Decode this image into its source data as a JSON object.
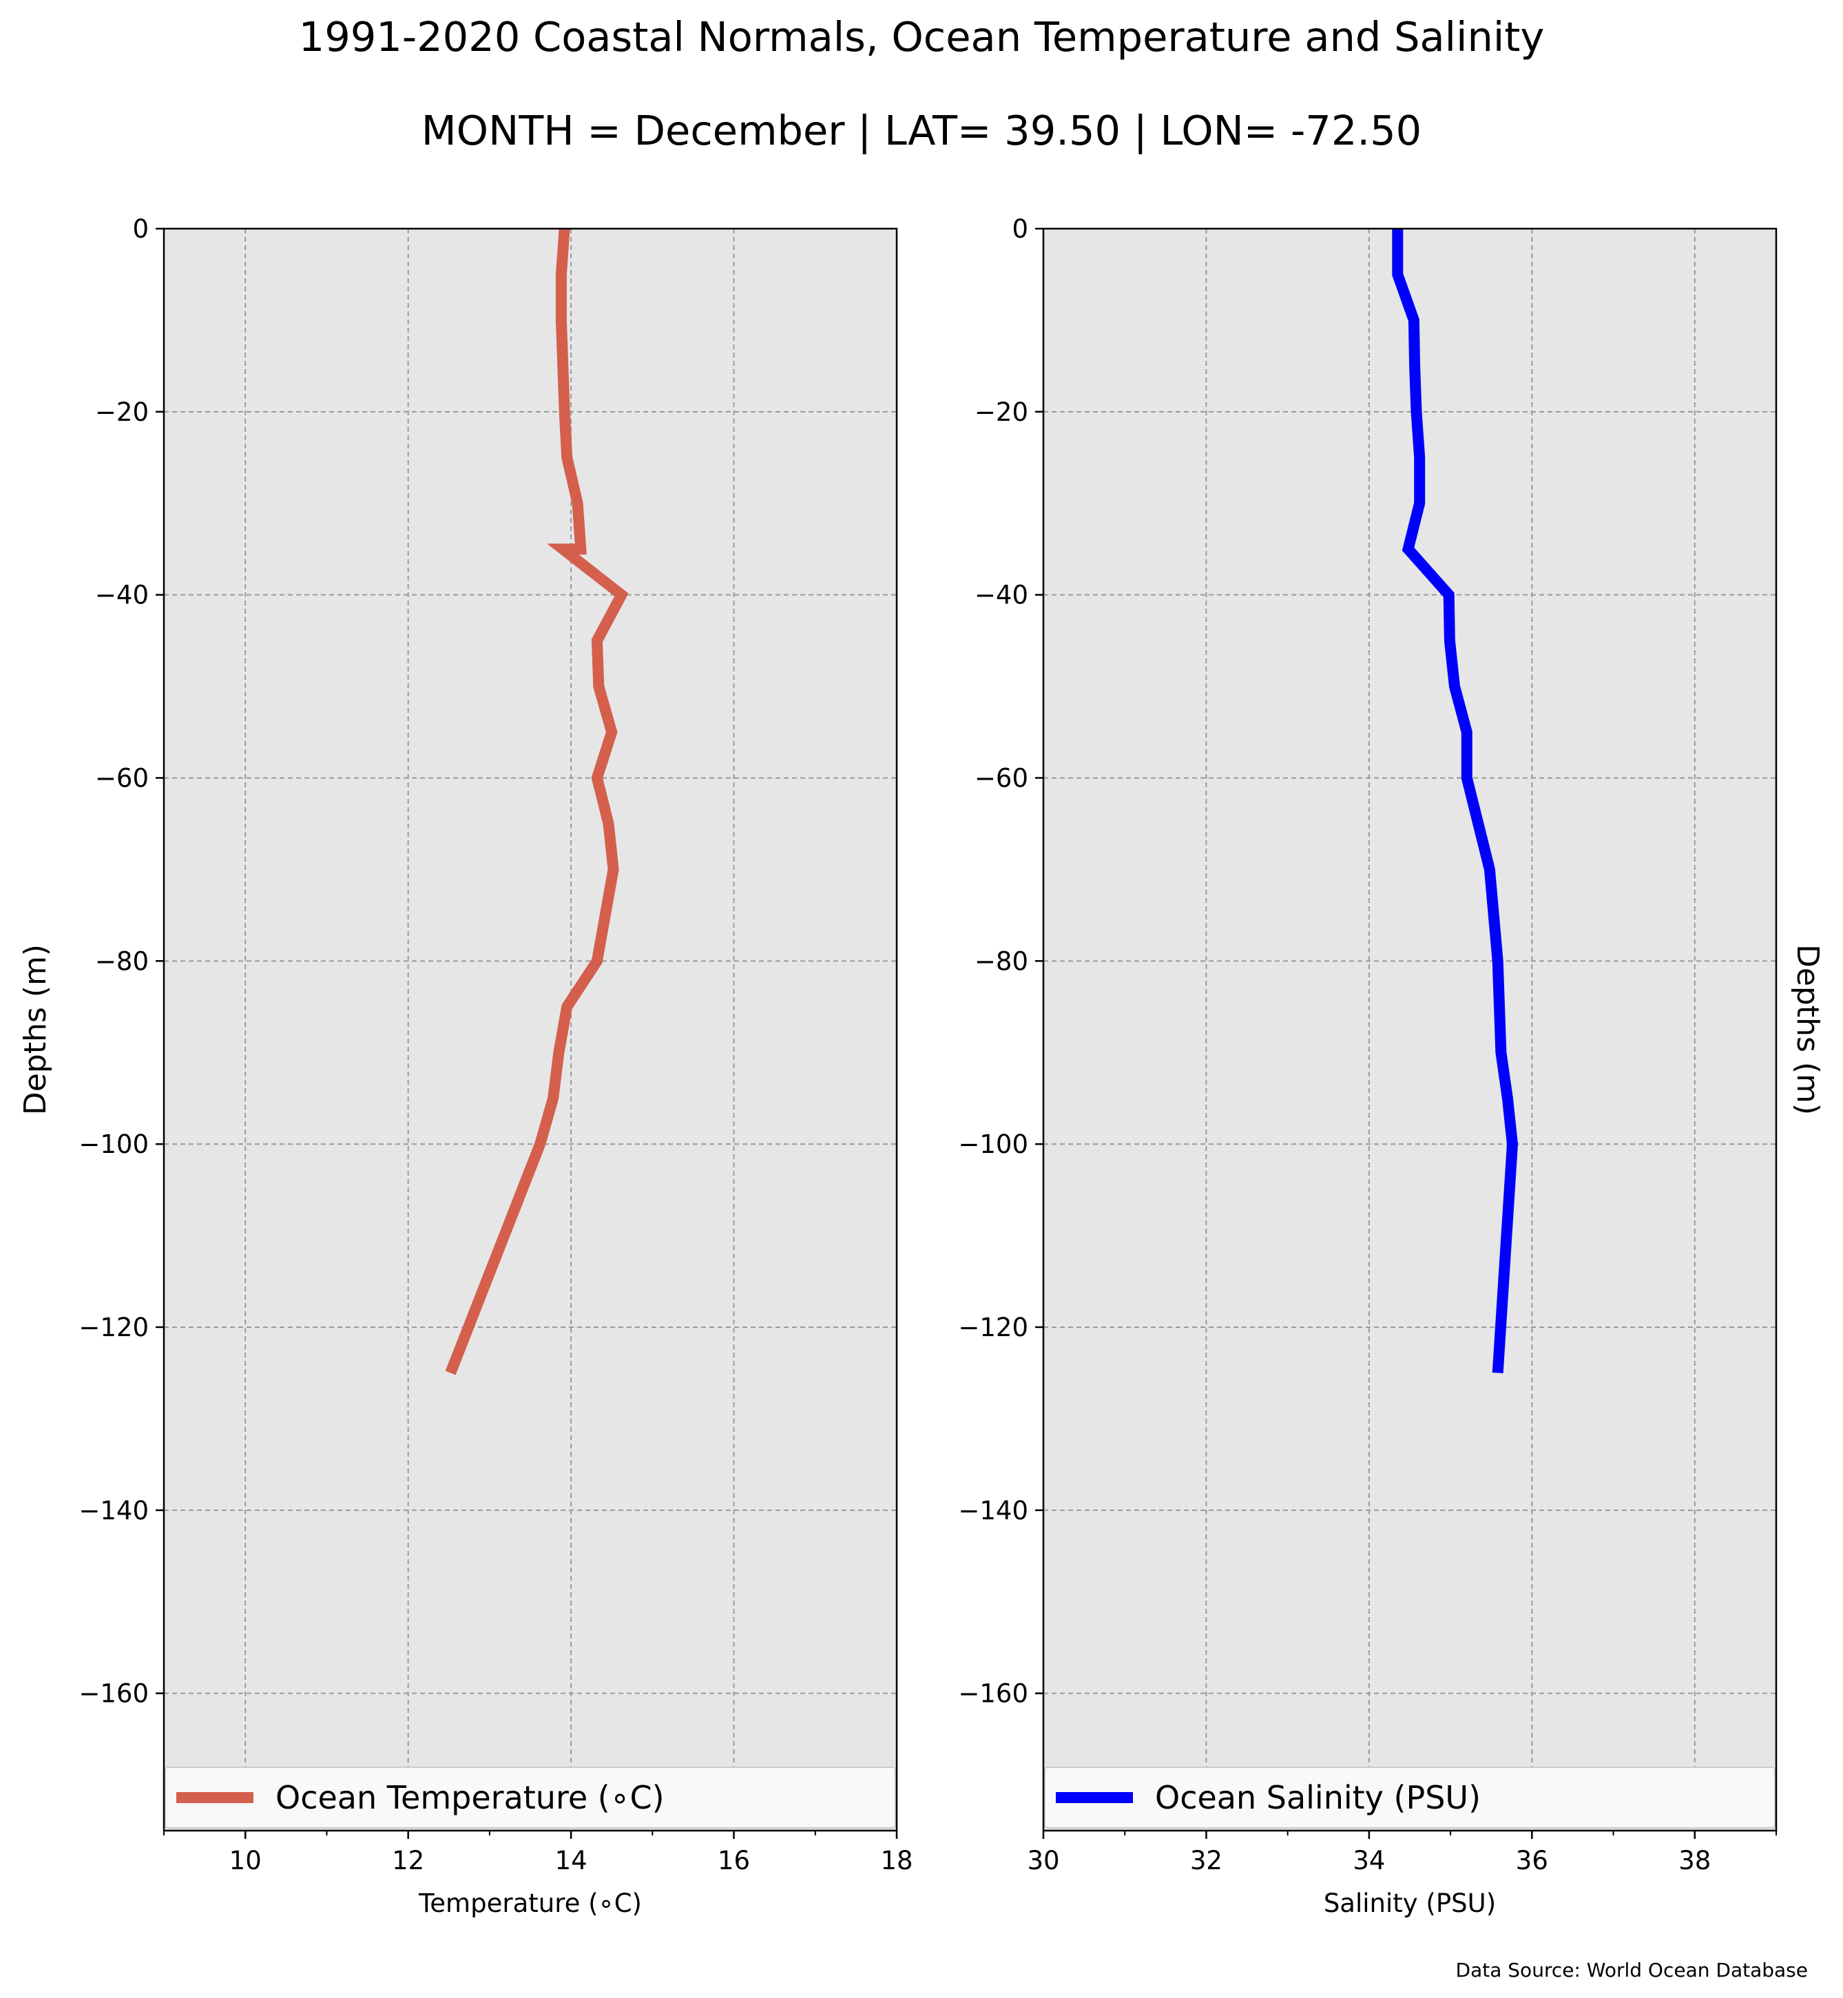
{
  "title": "1991-2020 Coastal Normals, Ocean Temperature and Salinity",
  "subtitle": "MONTH = December | LAT= 39.50 | LON= -72.50",
  "source": "Data Source: World Ocean Database",
  "chart_data": [
    {
      "type": "line",
      "xlabel": "Temperature (∘C)",
      "ylabel": "Depths (m)",
      "ylabel_side": "left",
      "xlim": [
        9,
        18
      ],
      "ylim": [
        -175,
        0
      ],
      "xticks": [
        10,
        12,
        14,
        16,
        18
      ],
      "xtick_labels": [
        "10",
        "12",
        "14",
        "16",
        "18"
      ],
      "yticks": [
        0,
        -20,
        -40,
        -60,
        -80,
        -100,
        -120,
        -140,
        -160
      ],
      "ytick_labels": [
        "0",
        "−20",
        "−40",
        "−60",
        "−80",
        "−100",
        "−120",
        "−140",
        "−160"
      ],
      "grid": true,
      "legend": "bottom",
      "series": [
        {
          "name": "Ocean Temperature (∘C)",
          "color": "#d45f4d",
          "x": [
            13.92,
            13.88,
            13.88,
            13.9,
            13.92,
            13.95,
            14.08,
            14.12,
            13.9,
            14.62,
            14.32,
            14.34,
            14.5,
            14.32,
            14.46,
            14.52,
            14.32,
            13.95,
            13.85,
            13.78,
            13.62,
            12.52
          ],
          "y": [
            0,
            -5,
            -10,
            -15,
            -20,
            -25,
            -30,
            -35,
            -35,
            -40,
            -45,
            -50,
            -55,
            -60,
            -65,
            -70,
            -80,
            -85,
            -90,
            -95,
            -100,
            -125
          ]
        }
      ]
    },
    {
      "type": "line",
      "xlabel": "Salinity (PSU)",
      "ylabel": "Depths (m)",
      "ylabel_side": "right",
      "xlim": [
        30,
        39
      ],
      "ylim": [
        -175,
        0
      ],
      "xticks": [
        30,
        32,
        34,
        36,
        38
      ],
      "xtick_labels": [
        "30",
        "32",
        "34",
        "36",
        "38"
      ],
      "yticks": [
        0,
        -20,
        -40,
        -60,
        -80,
        -100,
        -120,
        -140,
        -160
      ],
      "ytick_labels": [
        "0",
        "−20",
        "−40",
        "−60",
        "−80",
        "−100",
        "−120",
        "−140",
        "−160"
      ],
      "grid": true,
      "legend": "bottom",
      "series": [
        {
          "name": "Ocean Salinity (PSU)",
          "color": "#0000ff",
          "x": [
            34.35,
            34.35,
            34.55,
            34.56,
            34.58,
            34.62,
            34.62,
            34.48,
            34.98,
            34.99,
            35.05,
            35.2,
            35.2,
            35.48,
            35.58,
            35.62,
            35.7,
            35.76,
            35.58
          ],
          "y": [
            0,
            -5,
            -10,
            -15,
            -20,
            -25,
            -30,
            -35,
            -40,
            -45,
            -50,
            -55,
            -60,
            -70,
            -80,
            -90,
            -95,
            -100,
            -125
          ]
        }
      ]
    }
  ]
}
